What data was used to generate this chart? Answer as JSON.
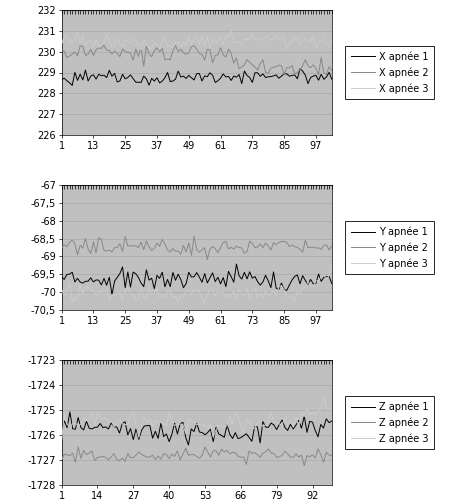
{
  "chart1": {
    "ylim": [
      226,
      232
    ],
    "yticks": [
      226,
      227,
      228,
      229,
      230,
      231,
      232
    ],
    "xticks": [
      1,
      13,
      25,
      37,
      49,
      61,
      73,
      85,
      97
    ],
    "xlim": [
      1,
      103
    ],
    "n_points": 103,
    "series": [
      {
        "label": "X apnée 1",
        "color": "#000000",
        "mean": 228.75,
        "amp": 0.18,
        "seed": 1
      },
      {
        "label": "X apnée 2",
        "color": "#888888",
        "mean": 230.05,
        "amp": 0.2,
        "seed": 2
      },
      {
        "label": "X apnée 3",
        "color": "#cccccc",
        "mean": 230.5,
        "amp": 0.18,
        "seed": 3
      }
    ]
  },
  "chart2": {
    "ylim": [
      -70.5,
      -67.0
    ],
    "yticks": [
      -70.5,
      -70.0,
      -69.5,
      -69.0,
      -68.5,
      -68.0,
      -67.5,
      -67.0
    ],
    "ytick_labels": [
      "-70,5",
      "-70",
      "-69,5",
      "-69",
      "-68,5",
      "-68",
      "-67,5",
      "-67"
    ],
    "xticks": [
      1,
      13,
      25,
      37,
      49,
      61,
      73,
      85,
      97
    ],
    "xlim": [
      1,
      103
    ],
    "n_points": 103,
    "series": [
      {
        "label": "Y apnée 1",
        "color": "#000000",
        "mean": -69.65,
        "amp": 0.15,
        "seed": 4
      },
      {
        "label": "Y apnée 2",
        "color": "#888888",
        "mean": -68.75,
        "amp": 0.13,
        "seed": 5
      },
      {
        "label": "Y apnée 3",
        "color": "#cccccc",
        "mean": -70.05,
        "amp": 0.12,
        "seed": 6
      }
    ]
  },
  "chart3": {
    "ylim": [
      -1728,
      -1723
    ],
    "yticks": [
      -1728,
      -1727,
      -1726,
      -1725,
      -1724,
      -1723
    ],
    "xticks": [
      1,
      14,
      27,
      40,
      53,
      66,
      79,
      92
    ],
    "xlim": [
      1,
      99
    ],
    "n_points": 99,
    "series": [
      {
        "label": "Z apnée 1",
        "color": "#000000",
        "mean": -1725.75,
        "amp": 0.2,
        "seed": 7
      },
      {
        "label": "Z apnée 2",
        "color": "#888888",
        "mean": -1726.8,
        "amp": 0.12,
        "seed": 8
      },
      {
        "label": "Z apnée 3",
        "color": "#cccccc",
        "mean": -1725.5,
        "amp": 0.18,
        "seed": 9
      }
    ]
  },
  "plot_bg": "#c0c0c0",
  "figure_bg": "#ffffff",
  "panel_bg": "#ffffff",
  "legend_fontsize": 7,
  "tick_fontsize": 7,
  "line_width": 0.7,
  "grid_color": "#aaaaaa"
}
